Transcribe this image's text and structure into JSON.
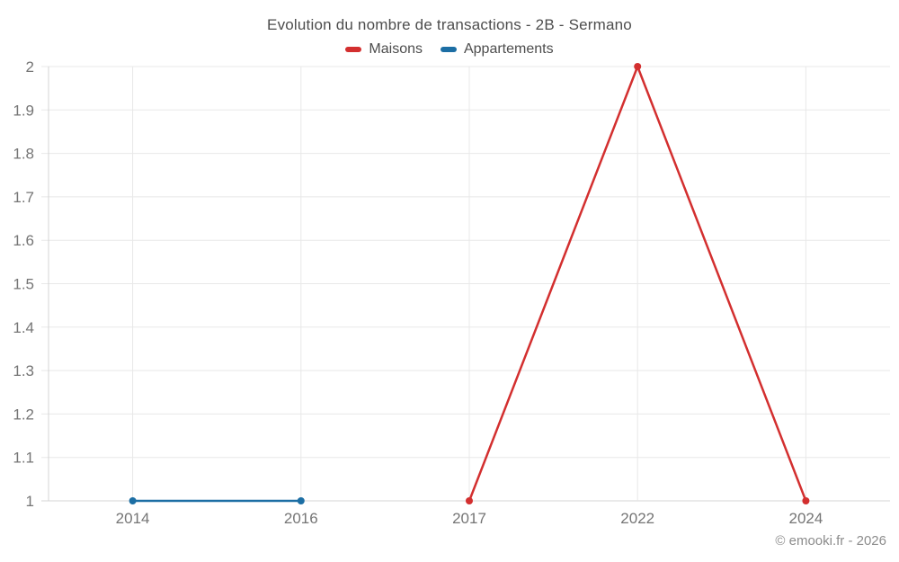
{
  "chart_data": {
    "type": "line",
    "title": "Evolution du nombre de transactions - 2B - Sermano",
    "categories": [
      "2014",
      "2016",
      "2017",
      "2022",
      "2024"
    ],
    "series": [
      {
        "name": "Maisons",
        "color": "#d32f2f",
        "values": [
          null,
          null,
          1,
          2,
          1
        ]
      },
      {
        "name": "Appartements",
        "color": "#1c6ea4",
        "values": [
          1,
          1,
          null,
          null,
          null
        ]
      }
    ],
    "ylim": [
      1,
      2
    ],
    "ytick_step": 0.1,
    "ytick_labels": [
      "2",
      "1.9",
      "1.8",
      "1.7",
      "1.6",
      "1.5",
      "1.4",
      "1.3",
      "1.2",
      "1.1",
      "1"
    ],
    "grid": true,
    "legend_position": "top",
    "line_width": 2.5,
    "point_radius": 4
  },
  "footer": {
    "copyright": "© emooki.fr - 2026"
  },
  "colors": {
    "grid": "#e8e8e8",
    "axis": "#d4d4d4",
    "tick_text": "#757575",
    "title_text": "#4d4d4d",
    "footer_text": "#8c8c8c",
    "background": "#ffffff"
  }
}
